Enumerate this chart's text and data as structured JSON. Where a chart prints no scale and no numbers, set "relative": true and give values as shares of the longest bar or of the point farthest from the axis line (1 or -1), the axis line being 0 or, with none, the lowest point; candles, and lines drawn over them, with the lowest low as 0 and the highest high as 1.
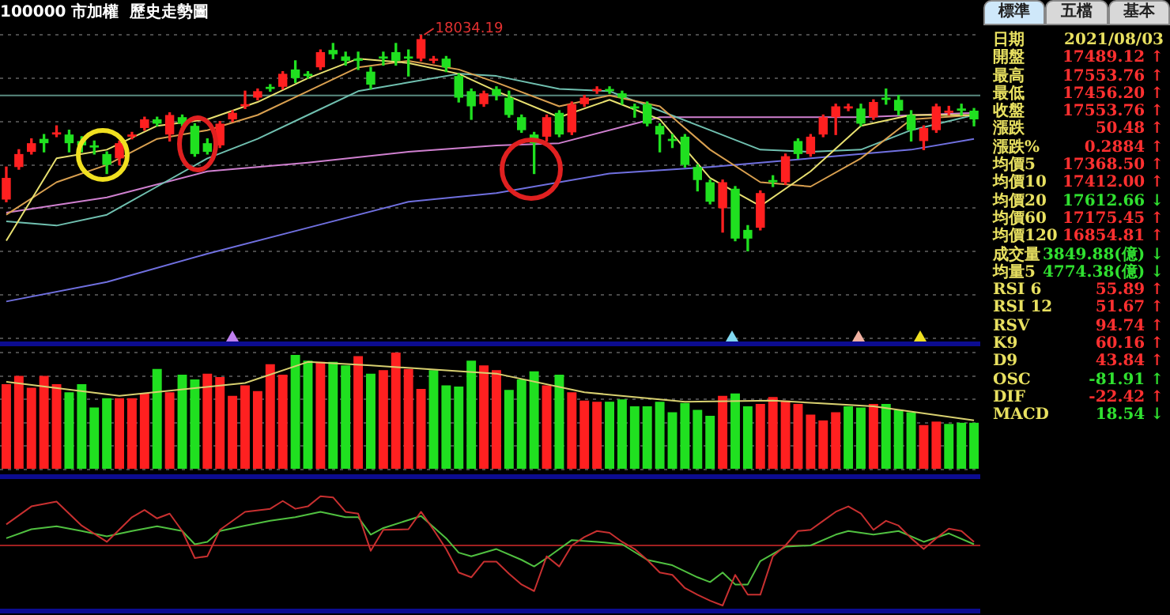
{
  "chart_data": [
    {
      "type": "candlestick",
      "title": "100000 市加權  歷史走勢圖",
      "relative": true,
      "grid": "y",
      "categories": [
        null,
        null,
        null,
        null,
        null,
        null,
        null,
        null,
        null,
        null,
        null,
        null,
        null,
        null,
        null,
        null,
        null,
        null,
        null,
        null,
        null,
        null,
        null,
        null,
        null,
        null,
        null,
        null,
        null,
        null,
        null,
        null,
        null,
        null,
        null,
        null,
        null,
        null,
        null,
        null,
        null,
        null,
        null,
        null,
        null,
        null,
        null,
        null,
        null,
        null,
        null,
        null,
        null,
        null,
        null,
        null,
        null,
        null,
        null,
        null,
        null,
        null,
        null,
        null,
        null,
        null,
        null,
        null,
        null,
        null,
        null,
        null,
        null,
        null,
        null,
        null,
        null,
        null
      ],
      "ohlc": [
        [
          0.24,
          0.39,
          0.23,
          0.34
        ],
        [
          0.39,
          0.47,
          0.38,
          0.45
        ],
        [
          0.46,
          0.52,
          0.45,
          0.5
        ],
        [
          0.52,
          0.54,
          0.46,
          0.5
        ],
        [
          0.54,
          0.58,
          0.53,
          0.55
        ],
        [
          0.54,
          0.56,
          0.46,
          0.5
        ],
        [
          0.51,
          0.53,
          0.46,
          0.49
        ],
        [
          0.49,
          0.51,
          0.45,
          0.48
        ],
        [
          0.45,
          0.46,
          0.36,
          0.4
        ],
        [
          0.43,
          0.51,
          0.4,
          0.5
        ],
        [
          0.53,
          0.55,
          0.52,
          0.54
        ],
        [
          0.57,
          0.62,
          0.56,
          0.61
        ],
        [
          0.61,
          0.62,
          0.58,
          0.59
        ],
        [
          0.54,
          0.64,
          0.51,
          0.63
        ],
        [
          0.62,
          0.63,
          0.58,
          0.59
        ],
        [
          0.58,
          0.59,
          0.44,
          0.45
        ],
        [
          0.5,
          0.52,
          0.45,
          0.46
        ],
        [
          0.49,
          0.6,
          0.48,
          0.59
        ],
        [
          0.61,
          0.65,
          0.6,
          0.64
        ],
        [
          0.67,
          0.74,
          0.66,
          0.68
        ],
        [
          0.71,
          0.75,
          0.7,
          0.74
        ],
        [
          0.76,
          0.77,
          0.74,
          0.75
        ],
        [
          0.76,
          0.83,
          0.75,
          0.82
        ],
        [
          0.84,
          0.88,
          0.78,
          0.8
        ],
        [
          0.82,
          0.83,
          0.8,
          0.81
        ],
        [
          0.85,
          0.93,
          0.84,
          0.92
        ],
        [
          0.93,
          0.96,
          0.89,
          0.91
        ],
        [
          0.9,
          0.92,
          0.86,
          0.88
        ],
        [
          0.89,
          0.92,
          0.84,
          0.88
        ],
        [
          0.83,
          0.85,
          0.75,
          0.77
        ],
        [
          0.9,
          0.92,
          0.86,
          0.89
        ],
        [
          0.92,
          0.96,
          0.86,
          0.88
        ],
        [
          0.9,
          0.93,
          0.81,
          0.89
        ],
        [
          0.89,
          1,
          0.88,
          0.98
        ],
        [
          0.88,
          0.9,
          0.87,
          0.89
        ],
        [
          0.89,
          0.9,
          0.83,
          0.85
        ],
        [
          0.81,
          0.82,
          0.69,
          0.71
        ],
        [
          0.74,
          0.75,
          0.61,
          0.67
        ],
        [
          0.68,
          0.74,
          0.67,
          0.73
        ],
        [
          0.75,
          0.76,
          0.7,
          0.72
        ],
        [
          0.71,
          0.74,
          0.62,
          0.63
        ],
        [
          0.62,
          0.63,
          0.55,
          0.56
        ],
        [
          0.54,
          0.55,
          0.36,
          0.5
        ],
        [
          0.53,
          0.63,
          0.51,
          0.62
        ],
        [
          0.64,
          0.65,
          0.53,
          0.54
        ],
        [
          0.55,
          0.69,
          0.54,
          0.68
        ],
        [
          0.68,
          0.72,
          0.67,
          0.71
        ],
        [
          0.74,
          0.76,
          0.73,
          0.75
        ],
        [
          0.75,
          0.76,
          0.73,
          0.74
        ],
        [
          0.73,
          0.74,
          0.68,
          0.71
        ],
        [
          0.67,
          0.68,
          0.62,
          0.66
        ],
        [
          0.68,
          0.69,
          0.58,
          0.59
        ],
        [
          0.58,
          0.59,
          0.46,
          0.54
        ],
        [
          0.52,
          0.54,
          0.48,
          0.51
        ],
        [
          0.53,
          0.54,
          0.39,
          0.4
        ],
        [
          0.39,
          0.4,
          0.28,
          0.33
        ],
        [
          0.32,
          0.33,
          0.22,
          0.23
        ],
        [
          0.2,
          0.33,
          0.09,
          0.32
        ],
        [
          0.29,
          0.3,
          0.05,
          0.06
        ],
        [
          0.1,
          0.12,
          0,
          0.06
        ],
        [
          0.11,
          0.28,
          0.1,
          0.27
        ],
        [
          0.33,
          0.35,
          0.3,
          0.32
        ],
        [
          0.32,
          0.45,
          0.31,
          0.44
        ],
        [
          0.51,
          0.52,
          0.43,
          0.45
        ],
        [
          0.45,
          0.54,
          0.44,
          0.53
        ],
        [
          0.54,
          0.63,
          0.53,
          0.62
        ],
        [
          0.62,
          0.68,
          0.54,
          0.67
        ],
        [
          0.66,
          0.68,
          0.65,
          0.67
        ],
        [
          0.66,
          0.68,
          0.58,
          0.59
        ],
        [
          0.62,
          0.7,
          0.61,
          0.69
        ],
        [
          0.71,
          0.75,
          0.68,
          0.7
        ],
        [
          0.7,
          0.72,
          0.63,
          0.65
        ],
        [
          0.63,
          0.65,
          0.51,
          0.56
        ],
        [
          0.51,
          0.58,
          0.47,
          0.57
        ],
        [
          0.56,
          0.68,
          0.55,
          0.67
        ],
        [
          0.64,
          0.67,
          0.63,
          0.65
        ],
        [
          0.66,
          0.68,
          0.63,
          0.65
        ],
        [
          0.65,
          0.66,
          0.58,
          0.61
        ]
      ],
      "series": [
        {
          "type": "line",
          "color": "#e8e070",
          "values": [
            0.05,
            null,
            null,
            null,
            0.43,
            null,
            null,
            null,
            0.47,
            null,
            null,
            null,
            0.58,
            null,
            null,
            null,
            0.61,
            null,
            null,
            null,
            0.69,
            null,
            null,
            null,
            0.8,
            null,
            null,
            null,
            0.89,
            null,
            null,
            null,
            0.87,
            null,
            null,
            null,
            0.82,
            null,
            null,
            0.74,
            null,
            null,
            null,
            null,
            0.62,
            null,
            null,
            null,
            0.7,
            null,
            null,
            null,
            0.61,
            null,
            null,
            null,
            0.34,
            null,
            null,
            null,
            0.21,
            null,
            null,
            null,
            0.37,
            null,
            null,
            null,
            0.58,
            null,
            null,
            null,
            0.63,
            null,
            null,
            null,
            null,
            0.63
          ]
        },
        {
          "type": "line",
          "color": "#d9a050",
          "values": [
            0.17,
            null,
            null,
            null,
            0.32,
            null,
            null,
            null,
            0.4,
            null,
            null,
            null,
            0.52,
            null,
            null,
            null,
            0.56,
            null,
            null,
            null,
            0.63,
            null,
            null,
            null,
            0.74,
            null,
            null,
            null,
            0.85,
            null,
            null,
            null,
            0.88,
            null,
            null,
            null,
            0.84,
            null,
            null,
            0.78,
            null,
            null,
            null,
            null,
            0.67,
            null,
            null,
            null,
            0.72,
            null,
            null,
            null,
            0.67,
            null,
            null,
            null,
            0.47,
            null,
            null,
            null,
            0.32,
            null,
            null,
            null,
            0.3,
            null,
            null,
            null,
            0.43,
            null,
            null,
            null,
            0.61,
            null,
            null,
            null,
            null,
            0.63
          ]
        },
        {
          "type": "line",
          "color": "#70c0b0",
          "values": [
            0.14,
            null,
            null,
            null,
            0.12,
            null,
            null,
            null,
            0.17,
            null,
            null,
            null,
            0.3,
            null,
            null,
            null,
            0.43,
            null,
            null,
            null,
            0.52,
            null,
            null,
            null,
            0.63,
            null,
            null,
            null,
            0.74,
            null,
            null,
            null,
            0.78,
            null,
            null,
            null,
            0.82,
            null,
            null,
            0.81,
            null,
            null,
            null,
            null,
            0.75,
            null,
            null,
            null,
            0.74,
            null,
            null,
            null,
            0.65,
            null,
            null,
            null,
            0.56,
            null,
            null,
            null,
            0.47,
            null,
            null,
            null,
            0.46,
            null,
            null,
            null,
            0.47,
            null,
            null,
            null,
            0.56,
            null,
            null,
            null,
            null,
            0.63
          ]
        },
        {
          "type": "line",
          "color": "#d080d0",
          "values": [
            0.18,
            null,
            null,
            null,
            null,
            null,
            null,
            null,
            0.25,
            null,
            null,
            null,
            null,
            null,
            null,
            null,
            0.37,
            null,
            null,
            null,
            null,
            null,
            null,
            null,
            0.41,
            null,
            null,
            null,
            null,
            null,
            null,
            null,
            0.46,
            null,
            null,
            null,
            null,
            null,
            null,
            0.49,
            null,
            null,
            null,
            null,
            0.5,
            null,
            null,
            null,
            null,
            null,
            null,
            null,
            0.62,
            null,
            null,
            null,
            null,
            null,
            null,
            null,
            0.62,
            null,
            null,
            null,
            null,
            null,
            null,
            null,
            0.62,
            null,
            null,
            null,
            null,
            null,
            null,
            null,
            null,
            0.64
          ]
        },
        {
          "type": "line",
          "color": "#7070e0",
          "values": [
            -0.23,
            null,
            null,
            null,
            null,
            null,
            null,
            null,
            -0.14,
            null,
            null,
            null,
            null,
            null,
            null,
            null,
            -0.01,
            null,
            null,
            null,
            null,
            null,
            null,
            null,
            0.11,
            null,
            null,
            null,
            null,
            null,
            null,
            null,
            0.23,
            null,
            null,
            null,
            null,
            null,
            null,
            0.27,
            null,
            null,
            null,
            null,
            null,
            null,
            null,
            null,
            0.36,
            null,
            null,
            null,
            null,
            null,
            null,
            null,
            0.39,
            null,
            null,
            null,
            null,
            null,
            null,
            null,
            0.43,
            null,
            null,
            null,
            null,
            null,
            null,
            null,
            0.47,
            null,
            null,
            null,
            null,
            0.52
          ]
        }
      ],
      "ref_lines": [
        {
          "axis": "y",
          "value": 0.72,
          "color": "#5a8a80"
        }
      ],
      "annotations": [
        "18034.19"
      ]
    },
    {
      "type": "bar",
      "relative": true,
      "grid": "y",
      "categories": [
        null,
        null,
        null,
        null,
        null,
        null,
        null,
        null,
        null,
        null,
        null,
        null,
        null,
        null,
        null,
        null,
        null,
        null,
        null,
        null,
        null,
        null,
        null,
        null,
        null,
        null,
        null,
        null,
        null,
        null,
        null,
        null,
        null,
        null,
        null,
        null,
        null,
        null,
        null,
        null,
        null,
        null,
        null,
        null,
        null,
        null,
        null,
        null,
        null,
        null,
        null,
        null,
        null,
        null,
        null,
        null,
        null,
        null,
        null,
        null,
        null,
        null,
        null,
        null,
        null,
        null,
        null,
        null,
        null,
        null,
        null,
        null,
        null,
        null,
        null,
        null,
        null,
        null
      ],
      "series": [
        {
          "type": "bar",
          "values": [
            0.73,
            0.8,
            0.7,
            0.8,
            0.73,
            0.66,
            0.73,
            0.53,
            0.61,
            0.61,
            0.61,
            0.65,
            0.86,
            0.66,
            0.81,
            0.77,
            0.82,
            0.79,
            0.63,
            0.72,
            0.67,
            0.9,
            0.81,
            0.98,
            0.93,
            0.92,
            0.92,
            0.89,
            0.97,
            0.82,
            0.85,
            1,
            0.86,
            0.69,
            0.85,
            0.72,
            0.71,
            0.93,
            0.89,
            0.85,
            0.68,
            0.77,
            0.84,
            0.72,
            0.81,
            0.66,
            0.59,
            0.58,
            0.58,
            0.6,
            0.54,
            0.54,
            0.58,
            0.49,
            0.57,
            0.51,
            0.46,
            0.63,
            0.65,
            0.54,
            0.56,
            0.62,
            0.59,
            0.56,
            0.47,
            0.42,
            0.49,
            0.54,
            0.53,
            0.56,
            0.56,
            0.51,
            0.49,
            0.38,
            0.41,
            0.39,
            0.4,
            0.4
          ],
          "colors": [
            "#ff2020",
            "#ff2020",
            "#ff2020",
            "#ff2020",
            "#ff2020",
            "#20e020",
            "#20e020",
            "#20e020",
            "#20e020",
            "#ff2020",
            "#ff2020",
            "#ff2020",
            "#20e020",
            "#ff2020",
            "#20e020",
            "#20e020",
            "#ff2020",
            "#ff2020",
            "#ff2020",
            "#ff2020",
            "#ff2020",
            "#ff2020",
            "#ff2020",
            "#20e020",
            "#20e020",
            "#ff2020",
            "#20e020",
            "#20e020",
            "#ff2020",
            "#20e020",
            "#ff2020",
            "#ff2020",
            "#ff2020",
            "#ff2020",
            "#20e020",
            "#20e020",
            "#20e020",
            "#20e020",
            "#ff2020",
            "#ff2020",
            "#20e020",
            "#20e020",
            "#20e020",
            "#ff2020",
            "#20e020",
            "#ff2020",
            "#ff2020",
            "#ff2020",
            "#20e020",
            "#20e020",
            "#20e020",
            "#20e020",
            "#20e020",
            "#20e020",
            "#20e020",
            "#20e020",
            "#20e020",
            "#ff2020",
            "#20e020",
            "#20e020",
            "#ff2020",
            "#ff2020",
            "#ff2020",
            "#ff2020",
            "#ff2020",
            "#ff2020",
            "#ff2020",
            "#20e020",
            "#20e020",
            "#ff2020",
            "#20e020",
            "#20e020",
            "#20e020",
            "#ff2020",
            "#ff2020",
            "#20e020",
            "#20e020",
            "#20e020"
          ]
        },
        {
          "type": "line",
          "color": "#d8d070",
          "values": [
            0.75,
            null,
            null,
            null,
            null,
            null,
            null,
            null,
            null,
            0.63,
            null,
            null,
            null,
            null,
            null,
            null,
            null,
            null,
            null,
            0.74,
            null,
            null,
            null,
            null,
            0.92,
            null,
            null,
            null,
            null,
            0.89,
            null,
            null,
            null,
            null,
            null,
            null,
            null,
            null,
            null,
            0.82,
            null,
            null,
            null,
            null,
            null,
            null,
            0.66,
            null,
            null,
            null,
            null,
            null,
            null,
            null,
            0.58,
            null,
            null,
            null,
            null,
            null,
            null,
            0.59,
            null,
            null,
            null,
            null,
            null,
            null,
            null,
            0.54,
            null,
            null,
            null,
            null,
            null,
            null,
            null,
            0.42
          ]
        }
      ]
    },
    {
      "type": "line",
      "relative": true,
      "categories": [
        null,
        null,
        null,
        null,
        null,
        null,
        null,
        null,
        null,
        null,
        null,
        null,
        null,
        null,
        null,
        null,
        null,
        null,
        null,
        null,
        null,
        null,
        null,
        null,
        null,
        null,
        null,
        null,
        null,
        null,
        null,
        null,
        null,
        null,
        null,
        null,
        null,
        null,
        null,
        null,
        null,
        null,
        null,
        null,
        null,
        null,
        null,
        null,
        null,
        null,
        null,
        null,
        null,
        null,
        null,
        null,
        null,
        null,
        null,
        null,
        null,
        null,
        null,
        null,
        null,
        null,
        null,
        null,
        null,
        null,
        null,
        null,
        null,
        null,
        null,
        null,
        null,
        null
      ],
      "series": [
        {
          "color": "#c83030",
          "values": [
            0.35,
            null,
            0.65,
            null,
            0.73,
            null,
            0.33,
            null,
            0.06,
            null,
            0.47,
            0.59,
            0.45,
            0.53,
            0.24,
            -0.21,
            -0.18,
            0.26,
            null,
            0.56,
            null,
            0.61,
            0.74,
            0.61,
            0.65,
            0.82,
            0.8,
            0.56,
            0.53,
            -0.09,
            0.26,
            null,
            0.27,
            0.56,
            0.26,
            -0.06,
            -0.45,
            -0.53,
            -0.27,
            -0.27,
            -0.47,
            -0.65,
            -0.76,
            -0.18,
            -0.35,
            0,
            0.14,
            0.24,
            0.21,
            0.06,
            -0.06,
            -0.24,
            -0.45,
            -0.49,
            -0.71,
            -0.82,
            -0.92,
            -1,
            -0.49,
            -0.82,
            -0.82,
            -0.18,
            0,
            0.24,
            0.26,
            0.41,
            0.56,
            0.65,
            0.53,
            0.26,
            0.41,
            0.33,
            0.12,
            -0.06,
            0.12,
            0.28,
            0.24,
            0.06
          ]
        },
        {
          "color": "#50c040",
          "values": [
            0.12,
            null,
            0.27,
            null,
            0.32,
            null,
            0.24,
            null,
            0.15,
            null,
            0.24,
            null,
            0.32,
            null,
            0.24,
            0.02,
            0.06,
            0.24,
            null,
            0.33,
            null,
            0.41,
            null,
            0.47,
            null,
            0.56,
            null,
            0.47,
            0.47,
            0.18,
            0.29,
            null,
            null,
            0.49,
            null,
            0.12,
            -0.12,
            -0.18,
            null,
            -0.06,
            null,
            -0.24,
            -0.35,
            -0.21,
            null,
            0.09,
            null,
            0.06,
            null,
            0.02,
            null,
            -0.24,
            null,
            -0.33,
            null,
            -0.53,
            -0.61,
            -0.45,
            -0.65,
            -0.65,
            -0.26,
            null,
            -0.02,
            null,
            0,
            null,
            0.18,
            0.24,
            null,
            0.18,
            null,
            0.24,
            null,
            0.06,
            null,
            0.2,
            null,
            0.02
          ]
        }
      ],
      "ref_lines": [
        {
          "axis": "y",
          "value": 0,
          "color": "#a02020"
        }
      ]
    },
    {
      "type": "other",
      "annotations": [
        "標準",
        "五檔",
        "基本"
      ],
      "categories": [
        "日期",
        "開盤",
        "最高",
        "最低",
        "收盤",
        "漲跌",
        "漲跌%",
        "均價5",
        "均價10",
        "均價20",
        "均價60",
        "均價120",
        "成交量",
        "均量5",
        "RSI 6",
        "RSI 12",
        "RSV",
        "K9",
        "D9",
        "OSC",
        "DIF",
        "MACD"
      ],
      "value_labels": [
        "2021/08/03",
        "17489.12 ↑",
        "17553.76 ↑",
        "17456.20 ↑",
        "17553.76 ↑",
        "50.48 ↑",
        "0.2884 ↑",
        "17368.50 ↑",
        "17412.00 ↑",
        "17612.66 ↓",
        "17175.45 ↑",
        "16854.81 ↑",
        "3849.88(億) ↓",
        "4774.38(億) ↓",
        "55.89 ↑",
        "51.67 ↑",
        "94.74 ↑",
        "60.16 ↑",
        "43.84 ↑",
        "-81.91 ↑",
        "-22.42 ↑",
        "18.54 ↓"
      ],
      "colors": [
        "#e8e060",
        "#ff3030",
        "#ff3030",
        "#ff3030",
        "#ff3030",
        "#ff3030",
        "#ff3030",
        "#ff3030",
        "#ff3030",
        "#30e030",
        "#ff3030",
        "#ff3030",
        "#30e030",
        "#30e030",
        "#ff3030",
        "#ff3030",
        "#ff3030",
        "#ff3030",
        "#ff3030",
        "#30e030",
        "#ff3030",
        "#30e030"
      ]
    }
  ]
}
